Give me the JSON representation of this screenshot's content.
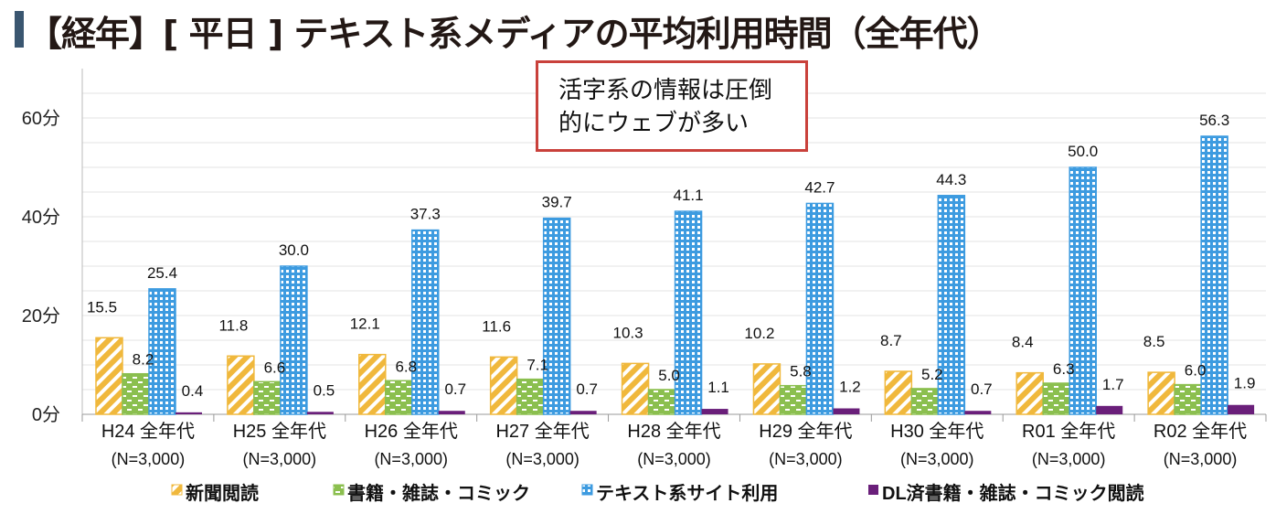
{
  "title": "【経年】[ 平日 ] テキスト系メディアの平均利用時間（全年代）",
  "callout": {
    "line1": "活字系の情報は圧倒",
    "line2": "的にウェブが多い"
  },
  "chart_data": {
    "type": "bar",
    "title": "【経年】[ 平日 ] テキスト系メディアの平均利用時間（全年代）",
    "categories": [
      "H24 全年代",
      "H25 全年代",
      "H26 全年代",
      "H27 全年代",
      "H28 全年代",
      "H29 全年代",
      "H30 全年代",
      "R01 全年代",
      "R02 全年代"
    ],
    "category_sub": "(N=3,000)",
    "ylim": [
      0,
      60
    ],
    "yticks": [
      0,
      20,
      40,
      60
    ],
    "ytick_labels": [
      "0分",
      "20分",
      "40分",
      "60分"
    ],
    "grid": true,
    "legend_position": "bottom",
    "series": [
      {
        "name": "新聞閲読",
        "color": "#f0b83c",
        "pattern": "diagonal",
        "values": [
          15.5,
          11.8,
          12.1,
          11.6,
          10.3,
          10.2,
          8.7,
          8.4,
          8.5
        ]
      },
      {
        "name": "書籍・雑誌・コミック",
        "color": "#8bbf4f",
        "pattern": "brick",
        "values": [
          8.2,
          6.6,
          6.8,
          7.1,
          5.0,
          5.8,
          5.2,
          6.3,
          6.0
        ]
      },
      {
        "name": "テキスト系サイト利用",
        "color": "#3d9be0",
        "pattern": "dots",
        "values": [
          25.4,
          30.0,
          37.3,
          39.7,
          41.1,
          42.7,
          44.3,
          50.0,
          56.3
        ]
      },
      {
        "name": "DL済書籍・雑誌・コミック閲読",
        "color": "#6a1f7a",
        "pattern": "solid",
        "values": [
          0.4,
          0.5,
          0.7,
          0.7,
          1.1,
          1.2,
          0.7,
          1.7,
          1.9
        ]
      }
    ]
  }
}
